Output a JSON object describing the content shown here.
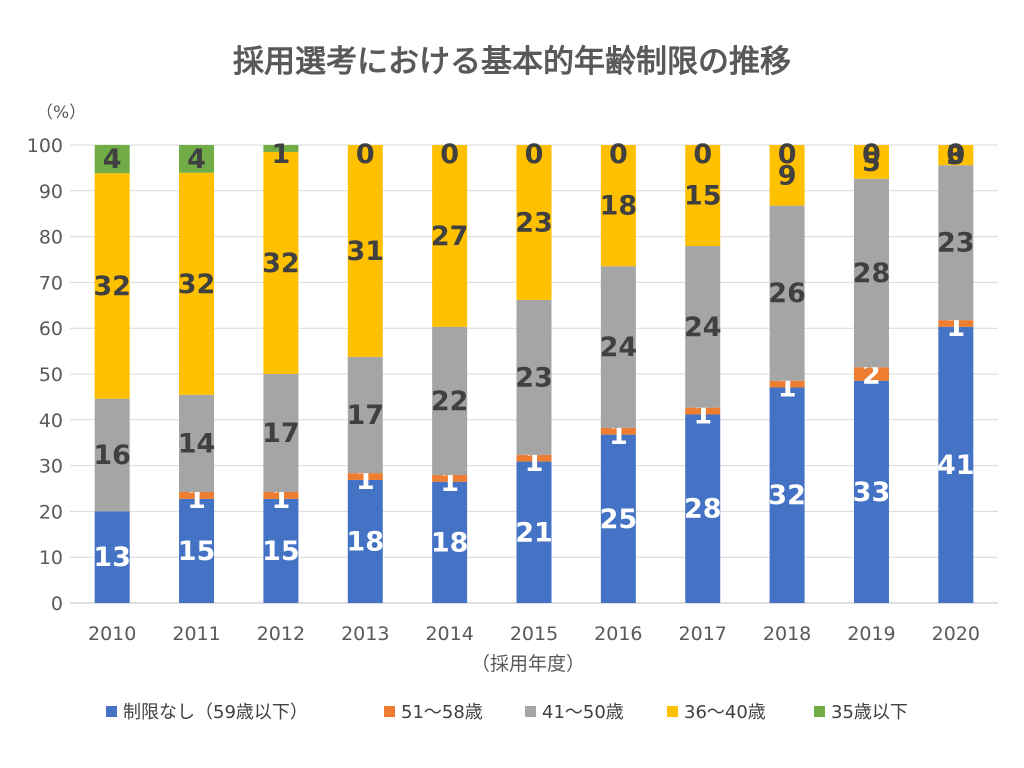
{
  "chart_data": {
    "type": "bar",
    "stacked": true,
    "percent_stacked": true,
    "title": "採用選考における基本的年齢制限の推移",
    "xlabel": "（採用年度）",
    "ylabel": "（%）",
    "ylim": [
      0,
      100
    ],
    "yticks": [
      0,
      10,
      20,
      30,
      40,
      50,
      60,
      70,
      80,
      90,
      100
    ],
    "grid": true,
    "legend_position": "bottom",
    "categories": [
      "2010",
      "2011",
      "2012",
      "2013",
      "2014",
      "2015",
      "2016",
      "2017",
      "2018",
      "2019",
      "2020"
    ],
    "series": [
      {
        "name": "制限なし（59歳以下）",
        "color": "#4472C4",
        "label_color": "#FFFFFF",
        "values": [
          13,
          15,
          15,
          18,
          18,
          21,
          25,
          28,
          32,
          33,
          41
        ]
      },
      {
        "name": "51〜58歳",
        "color": "#ED7D31",
        "label_color": "#FFFFFF",
        "values": [
          0,
          1,
          1,
          1,
          1,
          1,
          1,
          1,
          1,
          2,
          1
        ]
      },
      {
        "name": "41〜50歳",
        "color": "#A5A5A5",
        "label_color": "#404040",
        "values": [
          16,
          14,
          17,
          17,
          22,
          23,
          24,
          24,
          26,
          28,
          23
        ]
      },
      {
        "name": "36〜40歳",
        "color": "#FFC000",
        "label_color": "#404040",
        "values": [
          32,
          32,
          32,
          31,
          27,
          23,
          18,
          15,
          9,
          5,
          3
        ]
      },
      {
        "name": "35歳以下",
        "color": "#70AD47",
        "label_color": "#404040",
        "values": [
          4,
          4,
          1,
          0,
          0,
          0,
          0,
          0,
          0,
          0,
          0
        ]
      }
    ]
  }
}
